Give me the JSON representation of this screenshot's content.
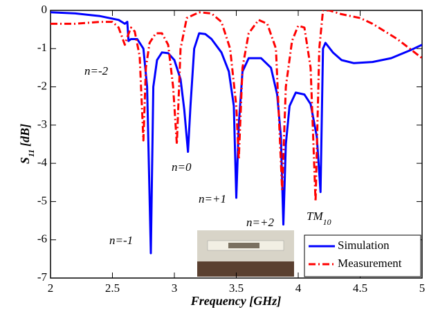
{
  "chart_data": {
    "type": "line",
    "xlabel": "Frequency [GHz]",
    "ylabel": {
      "text": "S",
      "sub": "11",
      "unit": "[dB]"
    },
    "xlim": [
      2,
      5
    ],
    "ylim": [
      -7,
      0
    ],
    "xticks": [
      2,
      2.5,
      3,
      3.5,
      4,
      4.5,
      5
    ],
    "yticks": [
      0,
      -1,
      -2,
      -3,
      -4,
      -5,
      -6,
      -7
    ],
    "legend": "lower right",
    "series": [
      {
        "name": "Simulation",
        "color": "#0000ff",
        "dash": "solid",
        "x": [
          2.0,
          2.2,
          2.4,
          2.55,
          2.6,
          2.62,
          2.63,
          2.65,
          2.7,
          2.75,
          2.78,
          2.81,
          2.83,
          2.86,
          2.9,
          2.95,
          3.0,
          3.05,
          3.08,
          3.11,
          3.13,
          3.16,
          3.2,
          3.25,
          3.3,
          3.38,
          3.44,
          3.48,
          3.5,
          3.52,
          3.55,
          3.6,
          3.7,
          3.78,
          3.83,
          3.86,
          3.88,
          3.9,
          3.93,
          3.98,
          4.05,
          4.1,
          4.15,
          4.18,
          4.2,
          4.22,
          4.28,
          4.35,
          4.45,
          4.6,
          4.75,
          4.9,
          5.0
        ],
        "values": [
          -0.05,
          -0.08,
          -0.15,
          -0.25,
          -0.35,
          -0.3,
          -0.8,
          -0.75,
          -0.75,
          -1.0,
          -2.0,
          -6.35,
          -2.0,
          -1.3,
          -1.1,
          -1.12,
          -1.3,
          -1.8,
          -2.6,
          -3.7,
          -2.5,
          -1.0,
          -0.6,
          -0.62,
          -0.75,
          -1.1,
          -1.6,
          -2.5,
          -4.9,
          -3.0,
          -1.6,
          -1.25,
          -1.25,
          -1.5,
          -2.2,
          -3.3,
          -5.6,
          -3.5,
          -2.5,
          -2.15,
          -2.2,
          -2.45,
          -3.3,
          -4.75,
          -1.0,
          -0.85,
          -1.1,
          -1.3,
          -1.38,
          -1.35,
          -1.25,
          -1.05,
          -0.9
        ]
      },
      {
        "name": "Measurement",
        "color": "#ff0000",
        "dash": "dashdot",
        "x": [
          2.0,
          2.2,
          2.4,
          2.5,
          2.55,
          2.6,
          2.62,
          2.65,
          2.68,
          2.72,
          2.75,
          2.77,
          2.8,
          2.85,
          2.9,
          2.95,
          2.99,
          3.02,
          3.05,
          3.1,
          3.2,
          3.3,
          3.38,
          3.45,
          3.5,
          3.52,
          3.55,
          3.6,
          3.68,
          3.75,
          3.82,
          3.87,
          3.9,
          3.95,
          4.0,
          4.05,
          4.1,
          4.14,
          4.17,
          4.2,
          4.25,
          4.35,
          4.5,
          4.6,
          4.7,
          4.8,
          4.9,
          5.0
        ],
        "values": [
          -0.35,
          -0.35,
          -0.3,
          -0.3,
          -0.45,
          -0.9,
          -0.7,
          -0.45,
          -0.55,
          -1.2,
          -3.4,
          -1.5,
          -0.85,
          -0.6,
          -0.6,
          -0.9,
          -2.0,
          -3.5,
          -1.0,
          -0.2,
          -0.05,
          -0.08,
          -0.3,
          -1.0,
          -2.5,
          -3.9,
          -1.5,
          -0.6,
          -0.25,
          -0.35,
          -1.0,
          -4.7,
          -2.0,
          -0.8,
          -0.4,
          -0.45,
          -1.5,
          -5.0,
          -1.0,
          0.0,
          0.0,
          -0.1,
          -0.2,
          -0.35,
          -0.55,
          -0.75,
          -1.0,
          -1.25
        ]
      }
    ],
    "annotations": [
      {
        "text": "n=-2"
      },
      {
        "text": "n=-1"
      },
      {
        "text": "n=0"
      },
      {
        "text": "n=+1"
      },
      {
        "text": "n=+2"
      },
      {
        "text": "TM",
        "sub": "10"
      }
    ]
  }
}
